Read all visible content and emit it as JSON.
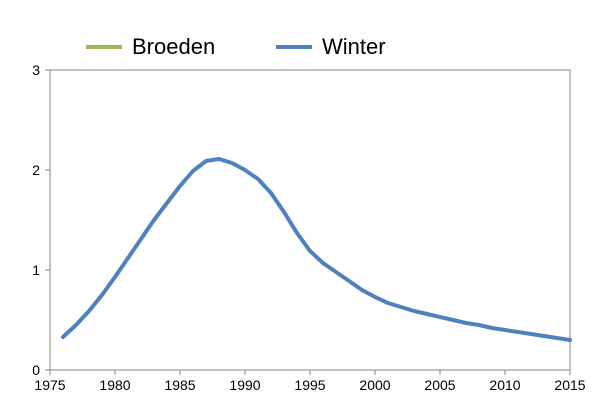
{
  "chart_data": {
    "type": "line",
    "title": "",
    "xlabel": "",
    "ylabel": "",
    "xlim": [
      1975,
      2015
    ],
    "ylim": [
      0,
      3
    ],
    "x_ticks": [
      "1975",
      "1980",
      "1985",
      "1990",
      "1995",
      "2000",
      "2005",
      "2010",
      "2015"
    ],
    "y_ticks": [
      "0",
      "1",
      "2",
      "3"
    ],
    "grid": false,
    "legend_position": "top",
    "series": [
      {
        "name": "Broeden",
        "color": "#9BBB59",
        "x": [],
        "values": []
      },
      {
        "name": "Winter",
        "color": "#4F81BD",
        "x": [
          1976,
          1977,
          1978,
          1979,
          1980,
          1981,
          1982,
          1983,
          1984,
          1985,
          1986,
          1987,
          1988,
          1989,
          1990,
          1991,
          1992,
          1993,
          1994,
          1995,
          1996,
          1997,
          1998,
          1999,
          2000,
          2001,
          2002,
          2003,
          2004,
          2005,
          2006,
          2007,
          2008,
          2009,
          2010,
          2011,
          2012,
          2013,
          2014,
          2015
        ],
        "values": [
          0.33,
          0.45,
          0.59,
          0.75,
          0.93,
          1.12,
          1.31,
          1.5,
          1.67,
          1.84,
          1.99,
          2.09,
          2.11,
          2.07,
          2.0,
          1.91,
          1.77,
          1.58,
          1.37,
          1.19,
          1.07,
          0.98,
          0.89,
          0.8,
          0.73,
          0.67,
          0.63,
          0.59,
          0.56,
          0.53,
          0.5,
          0.47,
          0.45,
          0.42,
          0.4,
          0.38,
          0.36,
          0.34,
          0.32,
          0.3
        ]
      }
    ]
  }
}
